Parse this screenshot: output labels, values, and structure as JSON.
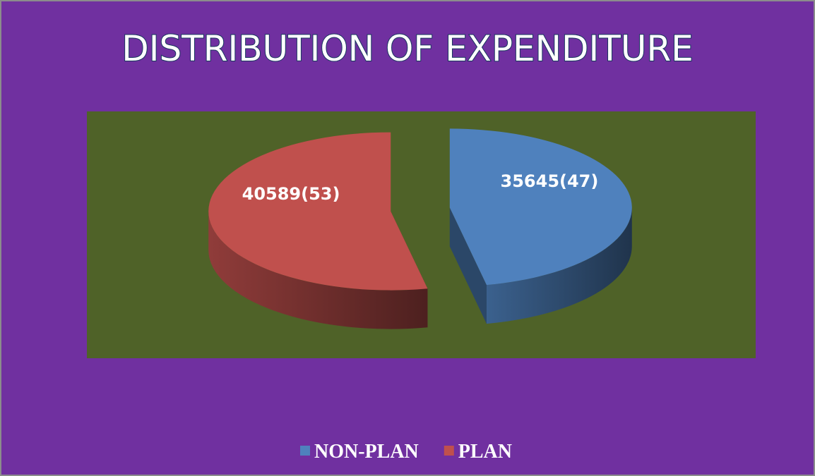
{
  "chart_data": {
    "type": "pie",
    "title": "DISTRIBUTION OF EXPENDITURE",
    "categories": [
      "NON-PLAN",
      "PLAN"
    ],
    "values": [
      35645,
      40589
    ],
    "value_labels": [
      "35645(47)",
      "40589(53)"
    ],
    "colors": [
      "#4f81bd",
      "#c0504d"
    ],
    "legend": "bottom"
  }
}
